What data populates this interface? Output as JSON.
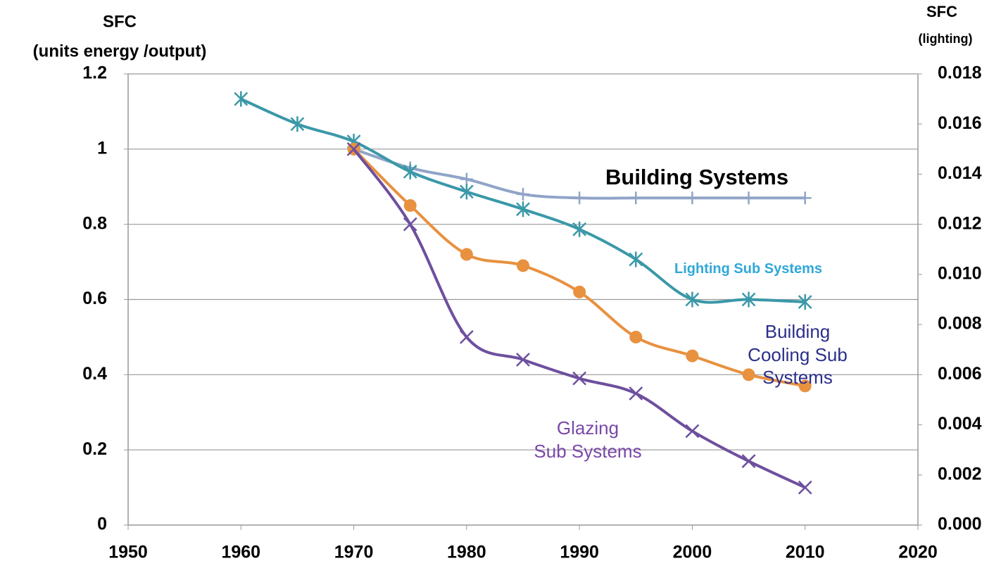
{
  "chart_data": {
    "type": "line",
    "ylabel": [
      "SFC",
      "(units energy /output)"
    ],
    "y2label": [
      "SFC",
      "(lighting)"
    ],
    "xlim": [
      1950,
      2020
    ],
    "xticks": [
      1950,
      1960,
      1970,
      1980,
      1990,
      2000,
      2010,
      2020
    ],
    "ylim": [
      0,
      1.2
    ],
    "yticks": [
      0,
      0.2,
      0.4,
      0.6,
      0.8,
      1,
      1.2
    ],
    "y2lim": [
      0,
      0.018
    ],
    "y2ticks": [
      {
        "value": 0,
        "label": "0.000"
      },
      0.002,
      0.004,
      0.006,
      0.008,
      {
        "value": 0.01,
        "label": "0.010"
      },
      0.012,
      0.014,
      0.016,
      0.018
    ],
    "grid": true,
    "series": [
      {
        "name": "Building Systems",
        "color": "#90a4c8",
        "label_color": "#000000",
        "marker": "plus",
        "x": [
          1970,
          1975,
          1980,
          1985,
          1990,
          1995,
          2000,
          2005,
          2010
        ],
        "values": [
          1,
          0.95,
          0.92,
          0.88,
          0.87,
          0.87,
          0.87,
          0.87,
          0.87
        ]
      },
      {
        "name": "Lighting Sub Systems",
        "color": "#3a98a8",
        "label_color": "#2fa8d8",
        "marker": "star",
        "axis": "y2",
        "x": [
          1960,
          1965,
          1970,
          1975,
          1980,
          1985,
          1990,
          1995,
          2000,
          2005,
          2010
        ],
        "values": [
          0.017,
          0.016,
          0.0153,
          0.0141,
          0.0133,
          0.0126,
          0.0118,
          0.0106,
          0.009,
          0.009,
          0.0089
        ]
      },
      {
        "name": "Building\nCooling Sub\nSystems",
        "color": "#e8913f",
        "label_color": "#2b2f8a",
        "marker": "circle",
        "x": [
          1970,
          1975,
          1980,
          1985,
          1990,
          1995,
          2000,
          2005,
          2010
        ],
        "values": [
          1,
          0.85,
          0.72,
          0.69,
          0.62,
          0.5,
          0.45,
          0.4,
          0.37
        ]
      },
      {
        "name": "Glazing\nSub Systems",
        "color": "#6e4f9e",
        "label_color": "#7a48a8",
        "marker": "cross",
        "x": [
          1970,
          1975,
          1980,
          1985,
          1990,
          1995,
          2000,
          2005,
          2010
        ],
        "values": [
          1,
          0.8,
          0.5,
          0.44,
          0.39,
          0.35,
          0.25,
          0.17,
          0.1
        ]
      }
    ]
  }
}
